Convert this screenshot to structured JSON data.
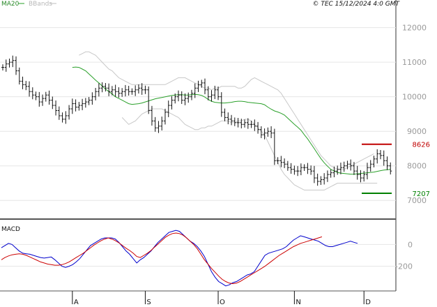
{
  "chart_data": [
    {
      "type": "candlestick",
      "panel": "price",
      "copyright": "© TEC 15/12/2024 4:0 GMT",
      "legend": [
        {
          "label": "MA20",
          "color": "#2aa02a"
        },
        {
          "label": "BBands",
          "color": "#bdbdbd"
        }
      ],
      "ylim": [
        6500,
        12800
      ],
      "y_ticks": [
        7000,
        8000,
        9000,
        10000,
        11000,
        12000
      ],
      "y_tick_labels": [
        "7000",
        "8000",
        "9000",
        "10000",
        "11000",
        "12000"
      ],
      "x_month_labels": [
        "A",
        "S",
        "O",
        "N",
        "D"
      ],
      "x_month_starts": [
        21,
        43,
        65,
        88,
        109
      ],
      "n_bars": 118,
      "close": [
        10850,
        10950,
        11000,
        11050,
        10750,
        10450,
        10350,
        10300,
        10150,
        10050,
        10000,
        9850,
        9950,
        10050,
        9900,
        9750,
        9600,
        9450,
        9350,
        9450,
        9650,
        9800,
        9700,
        9750,
        9800,
        9850,
        9900,
        10000,
        10150,
        10250,
        10300,
        10250,
        10150,
        10200,
        10150,
        10100,
        10150,
        10200,
        10150,
        10150,
        10200,
        10250,
        10200,
        10200,
        9600,
        9300,
        9100,
        9150,
        9300,
        9550,
        9750,
        9900,
        10000,
        10050,
        9900,
        9950,
        10000,
        10100,
        10250,
        10350,
        10400,
        10200,
        10000,
        10050,
        10200,
        10000,
        9550,
        9400,
        9350,
        9300,
        9250,
        9250,
        9200,
        9250,
        9200,
        9200,
        9150,
        9050,
        8900,
        8950,
        9000,
        8950,
        8150,
        8150,
        8100,
        8050,
        7950,
        7900,
        7850,
        7850,
        7950,
        7950,
        7900,
        7850,
        7650,
        7550,
        7600,
        7650,
        7750,
        7800,
        7850,
        7900,
        7950,
        8000,
        8050,
        8000,
        7850,
        7750,
        7650,
        7750,
        7950,
        8050,
        8200,
        8350,
        8300,
        8150,
        8000,
        7850
      ],
      "ohlc_note": "open, high and low per bar are drawn around each close",
      "ma20": [
        10850,
        10860,
        10850,
        10800,
        10750,
        10660,
        10570,
        10480,
        10400,
        10310,
        10220,
        10150,
        10080,
        10000,
        9950,
        9900,
        9850,
        9800,
        9780,
        9790,
        9800,
        9820,
        9850,
        9880,
        9910,
        9940,
        9960,
        9980,
        10000,
        10020,
        10040,
        10050,
        10060,
        10060,
        10050,
        10050,
        10060,
        10070,
        10060,
        10040,
        9990,
        9920,
        9870,
        9840,
        9830,
        9820,
        9820,
        9830,
        9840,
        9860,
        9870,
        9870,
        9860,
        9840,
        9830,
        9820,
        9810,
        9800,
        9770,
        9700,
        9640,
        9590,
        9560,
        9520,
        9470,
        9380,
        9290,
        9200,
        9120,
        9030,
        8900,
        8780,
        8640,
        8500,
        8350,
        8210,
        8090,
        7990,
        7900,
        7850,
        7810,
        7790,
        7780,
        7770,
        7760,
        7760,
        7770,
        7780,
        7790,
        7800,
        7810,
        7820,
        7840,
        7860,
        7880,
        7890,
        7900
      ],
      "ma20_start": 21,
      "bb_upper": [
        11200,
        11250,
        11300,
        11300,
        11250,
        11200,
        11100,
        11000,
        10900,
        10800,
        10750,
        10650,
        10550,
        10500,
        10450,
        10400,
        10350,
        10350,
        10350,
        10350,
        10350,
        10350,
        10350,
        10350,
        10350,
        10350,
        10350,
        10400,
        10450,
        10500,
        10550,
        10550,
        10550,
        10500,
        10450,
        10400,
        10350,
        10300,
        10250,
        10250,
        10200,
        10250,
        10250,
        10300,
        10300,
        10300,
        10300,
        10300,
        10250,
        10250,
        10300,
        10400,
        10500,
        10550,
        10500,
        10450,
        10400,
        10350,
        10300,
        10250,
        10200,
        10100,
        9950,
        9800,
        9650,
        9500,
        9350,
        9200,
        9050,
        8900,
        8750,
        8600,
        8450,
        8300,
        8200,
        8100,
        8000,
        7950,
        7900,
        7900,
        7900,
        7950,
        8000,
        8050,
        8100,
        8150,
        8200,
        8250,
        8300,
        8350
      ],
      "bb_lower": [
        9400,
        9300,
        9200,
        9250,
        9300,
        9400,
        9500,
        9550,
        9600,
        9650,
        9650,
        9650,
        9650,
        9600,
        9550,
        9500,
        9450,
        9400,
        9300,
        9200,
        9150,
        9100,
        9050,
        9050,
        9100,
        9100,
        9150,
        9150,
        9200,
        9250,
        9300,
        9300,
        9300,
        9250,
        9250,
        9300,
        9300,
        9350,
        9350,
        9300,
        9200,
        9100,
        9000,
        8900,
        8700,
        8500,
        8300,
        8100,
        7900,
        7750,
        7650,
        7550,
        7450,
        7400,
        7350,
        7300,
        7300,
        7300,
        7300,
        7300,
        7300,
        7300,
        7350,
        7400,
        7450,
        7500,
        7500,
        7500,
        7500,
        7500,
        7500,
        7500,
        7500,
        7500,
        7500,
        7500,
        7500,
        7500
      ],
      "bb_start": 21,
      "bb_upper_start": 23,
      "bb_lower_start": 36,
      "levels": [
        {
          "value": 8626,
          "label": "8626",
          "color": "#c00000"
        },
        {
          "value": 7207,
          "label": "7207",
          "color": "#008000"
        }
      ]
    },
    {
      "type": "line",
      "panel": "macd",
      "title": "MACD",
      "ylim": [
        -420,
        220
      ],
      "y_ticks": [
        0,
        -200
      ],
      "y_tick_labels": [
        "0",
        "-200"
      ],
      "series": [
        {
          "color": "#0000cc",
          "values": [
            -30,
            -10,
            10,
            0,
            -30,
            -60,
            -80,
            -85,
            -90,
            -100,
            -110,
            -120,
            -125,
            -120,
            -115,
            -140,
            -170,
            -200,
            -210,
            -200,
            -185,
            -160,
            -130,
            -90,
            -50,
            -10,
            10,
            30,
            50,
            60,
            60,
            60,
            50,
            20,
            -20,
            -60,
            -90,
            -130,
            -170,
            -140,
            -120,
            -90,
            -60,
            -20,
            20,
            50,
            80,
            110,
            120,
            130,
            120,
            90,
            60,
            30,
            10,
            -20,
            -60,
            -110,
            -180,
            -250,
            -300,
            -340,
            -360,
            -380,
            -370,
            -350,
            -340,
            -320,
            -300,
            -280,
            -270,
            -250,
            -200,
            -150,
            -100,
            -80,
            -70,
            -60,
            -50,
            -40,
            -20,
            10,
            40,
            60,
            80,
            70,
            60,
            50,
            40,
            30,
            10,
            -10,
            -20,
            -20,
            -10,
            0,
            10,
            20,
            30,
            20,
            10
          ]
        },
        {
          "color": "#cc0000",
          "values": [
            -140,
            -120,
            -105,
            -95,
            -90,
            -85,
            -90,
            -100,
            -115,
            -130,
            -145,
            -160,
            -170,
            -180,
            -185,
            -190,
            -190,
            -185,
            -175,
            -160,
            -140,
            -120,
            -100,
            -80,
            -55,
            -30,
            -5,
            15,
            35,
            50,
            60,
            50,
            35,
            15,
            -10,
            -35,
            -55,
            -80,
            -110,
            -120,
            -100,
            -80,
            -55,
            -25,
            5,
            35,
            65,
            85,
            100,
            105,
            100,
            85,
            60,
            30,
            0,
            -40,
            -90,
            -140,
            -180,
            -220,
            -255,
            -290,
            -320,
            -340,
            -355,
            -360,
            -355,
            -340,
            -320,
            -300,
            -280,
            -260,
            -240,
            -220,
            -200,
            -175,
            -150,
            -125,
            -100,
            -80,
            -60,
            -40,
            -20,
            -5,
            10,
            20,
            30,
            40,
            50,
            60,
            70
          ]
        }
      ]
    }
  ]
}
